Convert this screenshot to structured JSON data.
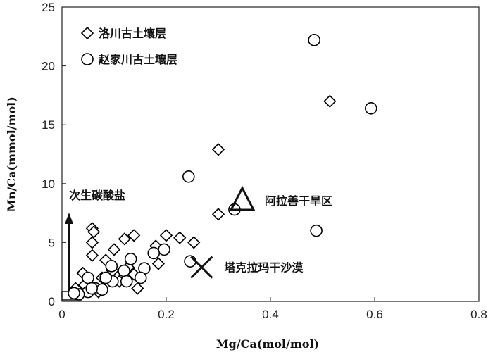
{
  "chart_data": {
    "type": "scatter",
    "xlabel": "Mg/Ca(mol/mol)",
    "ylabel": "Mn/Ca(mmol/mol)",
    "xlim": [
      0,
      0.8
    ],
    "xticks": [
      0,
      0.2,
      0.4,
      0.6,
      0.8
    ],
    "ylim": [
      0,
      25
    ],
    "yticks": [
      0,
      5,
      10,
      15,
      20,
      25
    ],
    "legend": "upper left",
    "series": [
      {
        "name": "洛川古土壤层",
        "marker": "diamond",
        "color": "#000000",
        "x": [
          0.058,
          0.061,
          0.058,
          0.04,
          0.026,
          0.058,
          0.1,
          0.12,
          0.138,
          0.2,
          0.226,
          0.253,
          0.18,
          0.185,
          0.138,
          0.084,
          0.077,
          0.11,
          0.127,
          0.145,
          0.043,
          0.3,
          0.3,
          0.514,
          0.07,
          0.097
        ],
        "values": [
          6.2,
          5.9,
          3.9,
          2.4,
          1.1,
          5.0,
          4.4,
          5.3,
          5.6,
          5.6,
          5.4,
          5.0,
          4.7,
          3.2,
          2.3,
          3.5,
          2.0,
          1.7,
          2.9,
          1.1,
          1.4,
          7.4,
          12.9,
          17.0,
          0.8,
          2.6
        ]
      },
      {
        "name": "赵家川古土壤层",
        "marker": "circle",
        "color": "#000000",
        "x": [
          0.484,
          0.593,
          0.243,
          0.331,
          0.488,
          0.246,
          0.196,
          0.176,
          0.158,
          0.132,
          0.119,
          0.124,
          0.097,
          0.084,
          0.064,
          0.05,
          0.05,
          0.032,
          0.077,
          0.057,
          0.023,
          0.095,
          0.151
        ],
        "values": [
          22.2,
          16.4,
          10.6,
          7.8,
          6.0,
          3.4,
          4.4,
          4.1,
          2.8,
          3.6,
          2.6,
          1.7,
          1.7,
          2.0,
          1.1,
          2.0,
          0.8,
          0.6,
          1.0,
          1.1,
          0.7,
          3.0,
          2.0
        ]
      }
    ],
    "markers": [
      {
        "label": "阿拉善干旱区",
        "shape": "triangle",
        "x": 0.346,
        "y": 8.55
      },
      {
        "label": "塔克拉玛干沙漠",
        "shape": "cross",
        "x": 0.268,
        "y": 2.9
      }
    ],
    "annotations": [
      "次生碳酸盐"
    ]
  }
}
